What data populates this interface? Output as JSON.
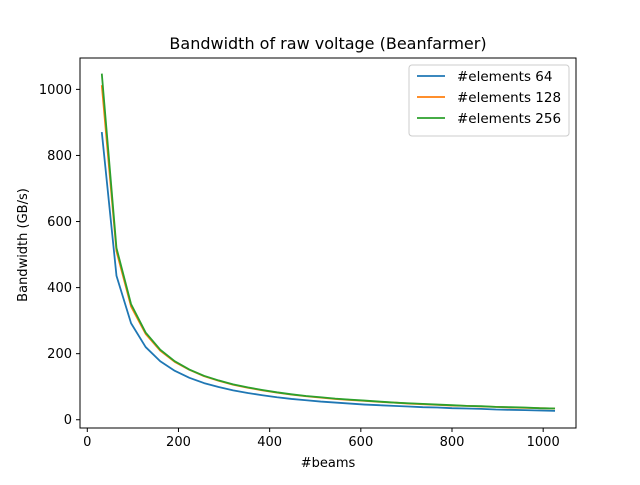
{
  "chart_data": {
    "type": "line",
    "title": "Bandwidth of raw voltage (Beanfarmer)",
    "xlabel": "#beams",
    "ylabel": "Bandwidth (GB/s)",
    "xlim": [
      -16,
      1072
    ],
    "ylim": [
      -25,
      1095
    ],
    "xticks": [
      0,
      200,
      400,
      600,
      800,
      1000
    ],
    "yticks": [
      0,
      200,
      400,
      600,
      800,
      1000
    ],
    "grid": false,
    "legend_position": "top-right",
    "x": [
      32,
      64,
      96,
      128,
      160,
      192,
      224,
      256,
      288,
      320,
      352,
      384,
      416,
      448,
      480,
      512,
      544,
      576,
      608,
      640,
      672,
      704,
      736,
      768,
      800,
      832,
      864,
      896,
      928,
      960,
      992,
      1024
    ],
    "series": [
      {
        "name": "#elements 64",
        "color": "#1f77b4",
        "values": [
          868,
          436,
          292,
          220,
          177,
          148,
          127,
          111,
          99,
          89,
          81,
          74,
          68,
          63,
          59,
          55,
          52,
          49,
          46,
          44,
          42,
          40,
          38,
          37,
          35,
          34,
          33,
          31,
          30,
          29,
          28,
          27
        ]
      },
      {
        "name": "#elements 128",
        "color": "#ff7f0e",
        "values": [
          1010,
          510,
          343,
          260,
          209,
          175,
          151,
          132,
          118,
          106,
          97,
          89,
          82,
          76,
          71,
          67,
          63,
          60,
          57,
          54,
          52,
          49,
          47,
          45,
          43,
          42,
          40,
          39,
          37,
          36,
          35,
          34
        ]
      },
      {
        "name": "#elements 256",
        "color": "#2ca02c",
        "values": [
          1045,
          520,
          350,
          264,
          212,
          177,
          152,
          133,
          119,
          107,
          98,
          90,
          83,
          77,
          72,
          68,
          64,
          61,
          58,
          55,
          52,
          50,
          48,
          46,
          44,
          42,
          41,
          39,
          38,
          37,
          35,
          34
        ]
      }
    ]
  }
}
